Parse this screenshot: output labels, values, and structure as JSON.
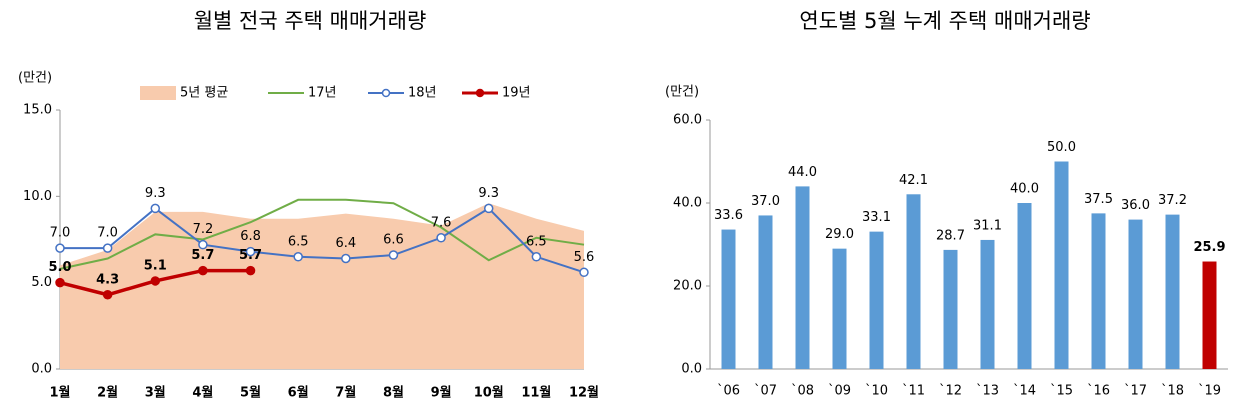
{
  "chart_data": [
    {
      "type": "line",
      "title": "월별 전국 주택 매매거래량",
      "ylabel": "(만건)",
      "categories": [
        "1월",
        "2월",
        "3월",
        "4월",
        "5월",
        "6월",
        "7월",
        "8월",
        "9월",
        "10월",
        "11월",
        "12월"
      ],
      "ylim": [
        0,
        15
      ],
      "yticks": [
        {
          "value": 0,
          "label": "0.0"
        },
        {
          "value": 5,
          "label": "5.0"
        },
        {
          "value": 10,
          "label": "10.0"
        },
        {
          "value": 15,
          "label": "15.0"
        }
      ],
      "grid": false,
      "legend": "top",
      "series": [
        {
          "name": "5년 평균",
          "style": "area",
          "color": "#f8cbad",
          "values": [
            6.0,
            6.9,
            9.1,
            9.1,
            8.7,
            8.7,
            9.0,
            8.7,
            8.3,
            9.6,
            8.7,
            8.0
          ]
        },
        {
          "name": "17년",
          "style": "line",
          "marker": "none",
          "color": "#70ad47",
          "values": [
            5.8,
            6.4,
            7.8,
            7.5,
            8.5,
            9.8,
            9.8,
            9.6,
            8.2,
            6.3,
            7.6,
            7.2
          ]
        },
        {
          "name": "18년",
          "style": "line",
          "marker": "hollow",
          "color": "#4472c4",
          "values": [
            7.0,
            7.0,
            9.3,
            7.2,
            6.8,
            6.5,
            6.4,
            6.6,
            7.6,
            9.3,
            6.5,
            5.6
          ],
          "value_labels": [
            "7.0",
            "7.0",
            "9.3",
            "7.2",
            "6.8",
            "6.5",
            "6.4",
            "6.6",
            "7.6",
            "9.3",
            "6.5",
            "5.6"
          ]
        },
        {
          "name": "19년",
          "style": "line",
          "marker": "filled",
          "bold_labels": true,
          "color": "#c00000",
          "values": [
            5.0,
            4.3,
            5.1,
            5.7,
            5.7,
            null,
            null,
            null,
            null,
            null,
            null,
            null
          ],
          "value_labels": [
            "5.0",
            "4.3",
            "5.1",
            "5.7",
            "5.7",
            null,
            null,
            null,
            null,
            null,
            null,
            null
          ]
        }
      ]
    },
    {
      "type": "bar",
      "title": "연도별 5월 누계 주택 매매거래량",
      "ylabel": "(만건)",
      "categories": [
        "`06",
        "`07",
        "`08",
        "`09",
        "`10",
        "`11",
        "`12",
        "`13",
        "`14",
        "`15",
        "`16",
        "`17",
        "`18",
        "`19"
      ],
      "values": [
        33.6,
        37.0,
        44.0,
        29.0,
        33.1,
        42.1,
        28.7,
        31.1,
        40.0,
        50.0,
        37.5,
        36.0,
        37.2,
        25.9
      ],
      "value_labels": [
        "33.6",
        "37.0",
        "44.0",
        "29.0",
        "33.1",
        "42.1",
        "28.7",
        "31.1",
        "40.0",
        "50.0",
        "37.5",
        "36.0",
        "37.2",
        "25.9"
      ],
      "colors": [
        "#5b9bd5",
        "#5b9bd5",
        "#5b9bd5",
        "#5b9bd5",
        "#5b9bd5",
        "#5b9bd5",
        "#5b9bd5",
        "#5b9bd5",
        "#5b9bd5",
        "#5b9bd5",
        "#5b9bd5",
        "#5b9bd5",
        "#5b9bd5",
        "#c00000"
      ],
      "ylim": [
        0,
        60
      ],
      "yticks": [
        {
          "value": 0,
          "label": "0.0"
        },
        {
          "value": 20,
          "label": "20.0"
        },
        {
          "value": 40,
          "label": "40.0"
        },
        {
          "value": 60,
          "label": "60.0"
        }
      ],
      "grid": false
    }
  ]
}
